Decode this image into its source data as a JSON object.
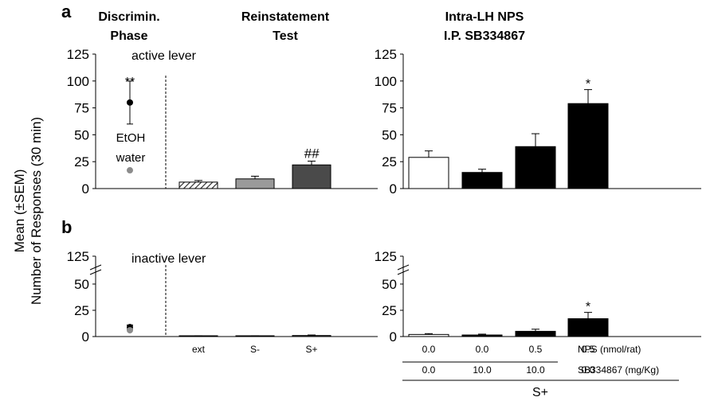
{
  "figure": {
    "panel_a_label": "a",
    "panel_b_label": "b",
    "headings": {
      "discrim_line1": "Discrimin.",
      "discrim_line2": "Phase",
      "reinstatement_line1": "Reinstatement",
      "reinstatement_line2": "Test",
      "intra_line1": "Intra-LH NPS",
      "intra_line2": "I.P. SB334867"
    },
    "ylabel_line1": "Mean (±SEM)",
    "ylabel_line2": "Number of Responses (30 min)",
    "active_label": "active lever",
    "inactive_label": "inactive lever",
    "etoh_label": "EtOH",
    "water_label": "water",
    "row_labels": {
      "nps": "NPS (nmol/rat)",
      "sb": "SB334867 (mg/Kg)",
      "s_plus_group": "S+"
    },
    "nps_values": [
      "0.0",
      "0.0",
      "0.5",
      "0.5"
    ],
    "sb_values": [
      "0.0",
      "10.0",
      "10.0",
      "0.0"
    ],
    "reinstatement_categories": [
      "ext",
      "S-",
      "S+"
    ]
  },
  "chart_data": [
    {
      "type": "scatter",
      "panel": "a",
      "section": "Discrimin. Phase",
      "ylim": [
        0,
        125
      ],
      "yticks": [
        "0",
        "25",
        "50",
        "75",
        "100",
        "125"
      ],
      "series": [
        {
          "name": "EtOH",
          "values": [
            80
          ],
          "error": [
            20
          ],
          "color": "#000000",
          "significance": "**"
        },
        {
          "name": "water",
          "values": [
            17
          ],
          "error": [
            0
          ],
          "color": "#8c8c8c"
        }
      ]
    },
    {
      "type": "bar",
      "panel": "a",
      "section": "Reinstatement Test",
      "ylim": [
        0,
        125
      ],
      "categories": [
        "ext",
        "S-",
        "S+"
      ],
      "values": [
        6,
        9,
        22
      ],
      "errors": [
        1.5,
        2.5,
        3.5
      ],
      "fills": [
        "hatched",
        "#9a9a9a",
        "#4a4a4a"
      ],
      "annotations": [
        "",
        "",
        "##"
      ]
    },
    {
      "type": "bar",
      "panel": "a",
      "section": "Intra-LH NPS I.P. SB334867",
      "ylim": [
        0,
        125
      ],
      "yticks": [
        "0",
        "25",
        "50",
        "75",
        "100",
        "125"
      ],
      "categories": [
        "0.0/0.0",
        "0.0/10.0",
        "0.5/10.0",
        "0.5/0.0"
      ],
      "values": [
        29,
        15,
        39,
        79
      ],
      "errors": [
        6,
        3,
        12,
        13
      ],
      "fills": [
        "#ffffff",
        "#000000",
        "#000000",
        "#000000"
      ],
      "annotations": [
        "",
        "",
        "",
        "*"
      ]
    },
    {
      "type": "scatter",
      "panel": "b",
      "section": "Discrimin. Phase",
      "ylim": [
        0,
        125
      ],
      "yticks": [
        "0",
        "25",
        "50",
        "125"
      ],
      "series": [
        {
          "name": "EtOH",
          "values": [
            9
          ],
          "error": [
            2
          ],
          "color": "#000000"
        },
        {
          "name": "water",
          "values": [
            6
          ],
          "error": [
            0
          ],
          "color": "#8c8c8c"
        }
      ]
    },
    {
      "type": "bar",
      "panel": "b",
      "section": "Reinstatement Test",
      "ylim": [
        0,
        125
      ],
      "categories": [
        "ext",
        "S-",
        "S+"
      ],
      "values": [
        0.5,
        0.5,
        1
      ],
      "errors": [
        0.3,
        0.3,
        0.5
      ],
      "fills": [
        "hatched",
        "#9a9a9a",
        "#4a4a4a"
      ],
      "annotations": [
        "",
        "",
        ""
      ]
    },
    {
      "type": "bar",
      "panel": "b",
      "section": "Intra-LH NPS I.P. SB334867",
      "ylim": [
        0,
        125
      ],
      "yticks": [
        "0",
        "25",
        "50",
        "125"
      ],
      "categories": [
        "0.0/0.0",
        "0.0/10.0",
        "0.5/10.0",
        "0.5/0.0"
      ],
      "values": [
        2,
        1.5,
        5,
        17
      ],
      "errors": [
        0.8,
        0.8,
        2,
        6
      ],
      "fills": [
        "#ffffff",
        "#000000",
        "#000000",
        "#000000"
      ],
      "annotations": [
        "",
        "",
        "",
        "*"
      ]
    }
  ]
}
